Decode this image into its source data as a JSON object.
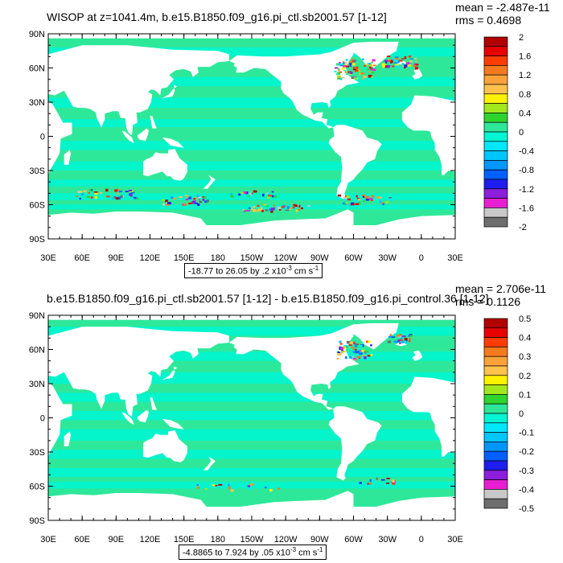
{
  "panels": [
    {
      "title": "WISOP at z=1041.4m, b.e15.B1850.f09_g16.pi_ctl.sb2001.57 [1-12]",
      "mean_label": "mean = -2.487e-11",
      "rms_label": "rms = 0.4698",
      "range_prefix": "-18.77 to 26.05 by .2 x10",
      "range_exp": "-3",
      "range_unit": " cm s",
      "range_unit_exp": "-1",
      "lat_labels": [
        "90N",
        "60N",
        "30N",
        "0",
        "30S",
        "60S",
        "90S"
      ],
      "lon_labels": [
        "30E",
        "60E",
        "90E",
        "120E",
        "150E",
        "180",
        "150W",
        "120W",
        "90W",
        "60W",
        "30W",
        "0",
        "30E"
      ],
      "colorbar_labels": [
        "2",
        "1.6",
        "1.2",
        "0.8",
        "0.4",
        "0",
        "-0.4",
        "-0.8",
        "-1.2",
        "-1.6",
        "-2"
      ]
    },
    {
      "title": "b.e15.B1850.f09_g16.pi_ctl.sb2001.57 [1-12] - b.e15.B1850.f09_g16.pi_control.36 [1-12]",
      "mean_label": "mean = 2.706e-11",
      "rms_label": "rms = 0.1126",
      "range_prefix": "-4.8865 to 7.924 by .05 x10",
      "range_exp": "-3",
      "range_unit": " cm s",
      "range_unit_exp": "-1",
      "lat_labels": [
        "90N",
        "60N",
        "30N",
        "0",
        "30S",
        "60S",
        "90S"
      ],
      "lon_labels": [
        "30E",
        "60E",
        "90E",
        "120E",
        "150E",
        "180",
        "150W",
        "120W",
        "90W",
        "60W",
        "30W",
        "0",
        "30E"
      ],
      "colorbar_labels": [
        "0.5",
        "0.4",
        "0.3",
        "0.2",
        "0.1",
        "0",
        "-0.1",
        "-0.2",
        "-0.3",
        "-0.4",
        "-0.5"
      ]
    }
  ],
  "colorbar_colors": [
    "#b00000",
    "#e80000",
    "#ff3c00",
    "#f57a1e",
    "#fba33a",
    "#ffc34d",
    "#fff200",
    "#a3e81c",
    "#2fd42f",
    "#2ee89a",
    "#00f5d2",
    "#00e8ff",
    "#00c5ff",
    "#0096ff",
    "#005fff",
    "#1e1ef0",
    "#8c1edc",
    "#e81ed2",
    "#c8c8c8",
    "#6e6e6e"
  ],
  "map_colors": {
    "ocean_main": "#2ee89a",
    "ocean_alt": "#00f5d2",
    "land": "#ffffff"
  }
}
